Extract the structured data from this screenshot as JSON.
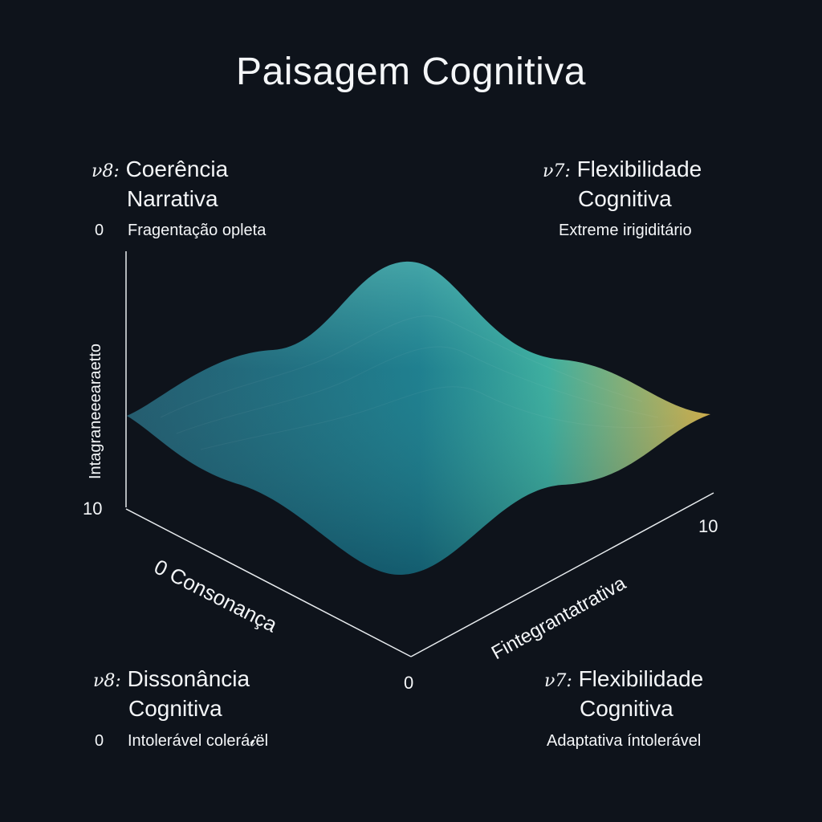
{
  "title": "Paisagem Cognitiva",
  "corners": {
    "top_left": {
      "code": "ν8:",
      "line1": "Coerência",
      "line2": "Narrativa",
      "zero": "0",
      "subtitle": "Fragentação opleta"
    },
    "top_right": {
      "code": "ν7:",
      "line1": "Flexibilidade",
      "line2": "Cognitiva",
      "subtitle": "Extreme irigiditário"
    },
    "bottom_left": {
      "code": "ν8:",
      "line1": "Dissonância",
      "line2": "Cognitiva",
      "zero": "0",
      "subtitle": "Intolerável colerá𝓲ël"
    },
    "bottom_right": {
      "code": "ν7:",
      "line1": "Flexibilidade",
      "line2": "Cognitiva",
      "subtitle": "Adaptativa íntolerável"
    }
  },
  "chart_data": {
    "type": "surface",
    "title": "Paisagem Cognitiva",
    "zlabel": "Intagraneeearaetto",
    "xlabel": "0 Consonança",
    "ylabel": "Fintegrantatrativa",
    "ticks": {
      "z_bottom": "10",
      "origin": "0",
      "y_end": "10"
    },
    "grid": false,
    "colormap": [
      "#1d4e66",
      "#17768a",
      "#3aab9c",
      "#e7ad3b"
    ],
    "surface_profile": {
      "back_edge": [
        {
          "u": 0.0,
          "h": 0.45
        },
        {
          "u": 0.25,
          "h": 0.62
        },
        {
          "u": 0.47,
          "h": 1.0
        },
        {
          "u": 0.72,
          "h": 0.55
        },
        {
          "u": 1.0,
          "h": 0.5
        }
      ],
      "front_edge": [
        {
          "u": 0.0,
          "h": 0.45
        },
        {
          "u": 0.25,
          "h": 0.3
        },
        {
          "u": 0.47,
          "h": 0.05
        },
        {
          "u": 0.72,
          "h": 0.28
        },
        {
          "u": 1.0,
          "h": 0.5
        }
      ]
    }
  }
}
